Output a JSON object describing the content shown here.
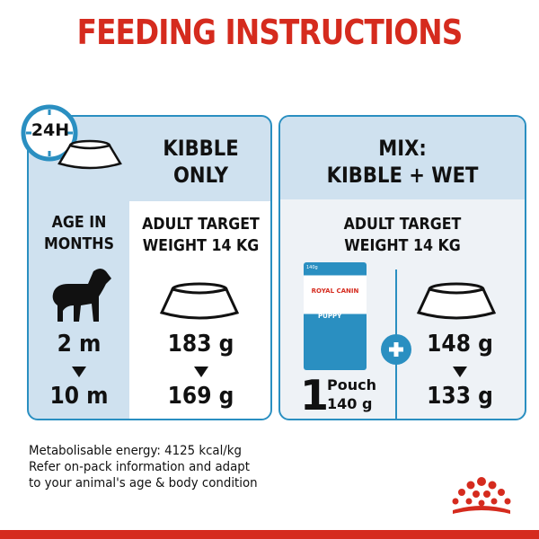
{
  "title": "FEEDING INSTRUCTIONS",
  "clock_label": "24H",
  "kibble_only": {
    "heading_line1": "KIBBLE",
    "heading_line2": "ONLY",
    "target_line1": "ADULT TARGET",
    "target_line2": "WEIGHT 14 KG",
    "from": "183 g",
    "to": "169 g"
  },
  "age": {
    "heading_line1": "AGE IN",
    "heading_line2": "MONTHS",
    "from": "2 m",
    "to": "10 m"
  },
  "mix": {
    "heading_line1": "MIX:",
    "heading_line2": "KIBBLE + WET",
    "target_line1": "ADULT TARGET",
    "target_line2": "WEIGHT 14 KG",
    "pouch_count": "1",
    "pouch_label": "Pouch",
    "pouch_weight": "140 g",
    "from": "148 g",
    "to": "133 g",
    "pouch_pack": {
      "weight": "140g",
      "brand": "ROYAL CANIN",
      "product": "PUPPY"
    }
  },
  "footer": {
    "line1": "Metabolisable energy: 4125 kcal/kg",
    "line2": "Refer on-pack information and adapt",
    "line3": "to your animal's age & body condition"
  },
  "colors": {
    "title_red": "#d52b1e",
    "accent_blue": "#2a8fc1",
    "panel_light_blue": "#cfe1ef"
  }
}
